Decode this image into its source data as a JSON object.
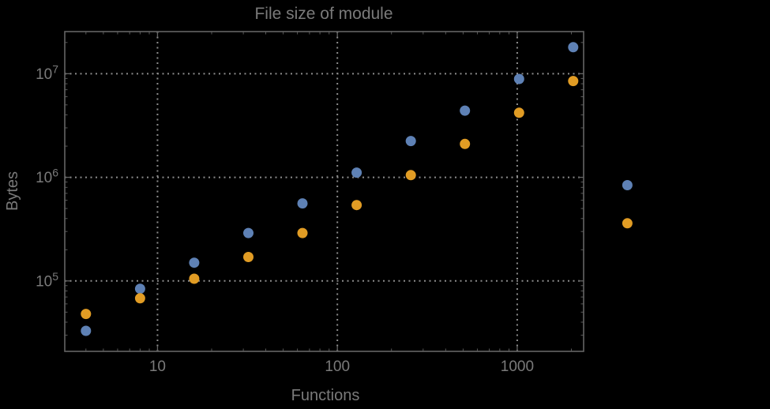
{
  "figure": {
    "title": "File size of module",
    "xlabel": "Functions",
    "ylabel": "Bytes"
  },
  "colors": {
    "background": "#000000",
    "frame": "#646464",
    "grid": "#8c8c8c",
    "text": "#7a7a7a",
    "series_blue": "#5e81b5",
    "series_orange": "#e19c24"
  },
  "chart_data": {
    "type": "scatter",
    "title": "File size of module",
    "xlabel": "Functions",
    "ylabel": "Bytes",
    "xscale": "log",
    "yscale": "log",
    "grid": "dotted-at-major-ticks",
    "legend": "none",
    "x": [
      4,
      8,
      16,
      32,
      64,
      128,
      256,
      512,
      1024,
      2048,
      4096
    ],
    "series": [
      {
        "name": "blue-points",
        "color": "#5e81b5",
        "values": [
          33000,
          84000,
          150000,
          290000,
          560000,
          1110000,
          2240000,
          4400000,
          8900000,
          18000000,
          840000
        ]
      },
      {
        "name": "orange-points",
        "color": "#e19c24",
        "values": [
          48000,
          68000,
          105000,
          170000,
          290000,
          540000,
          1050000,
          2100000,
          4200000,
          8500000,
          360000
        ]
      }
    ],
    "xticks": [
      {
        "value": 10,
        "label": "10"
      },
      {
        "value": 100,
        "label": "100"
      },
      {
        "value": 1000,
        "label": "1000"
      }
    ],
    "yticks": [
      {
        "value": 100000,
        "base": "10",
        "exp": "5"
      },
      {
        "value": 1000000,
        "base": "10",
        "exp": "6"
      },
      {
        "value": 10000000,
        "base": "10",
        "exp": "7"
      }
    ],
    "xlim": [
      3.05,
      2340
    ],
    "ylim": [
      20900,
      25500000
    ],
    "note": "points at x=4096 fall outside the plotted frame range and are drawn beyond the right frame edge"
  }
}
